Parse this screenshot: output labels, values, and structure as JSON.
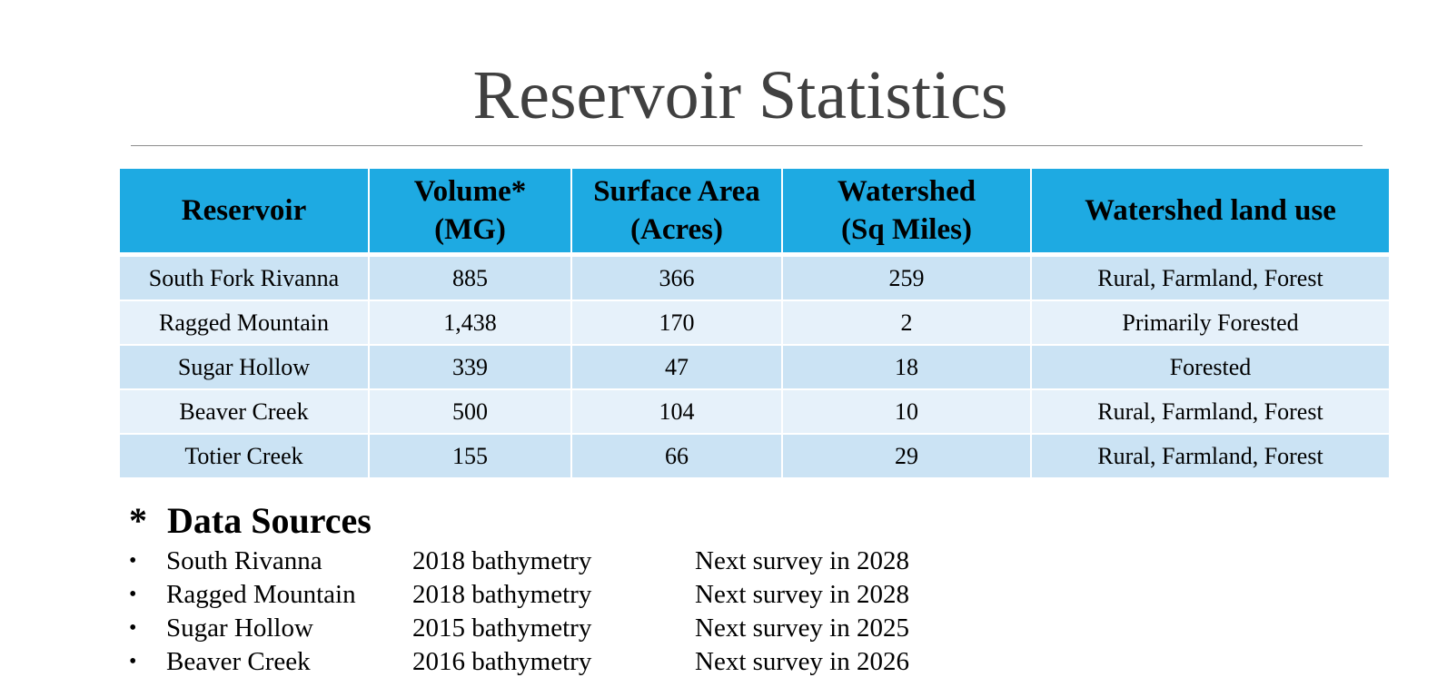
{
  "title": "Reservoir Statistics",
  "table": {
    "headers": [
      [
        "Reservoir"
      ],
      [
        "Volume*",
        "(MG)"
      ],
      [
        "Surface Area",
        "(Acres)"
      ],
      [
        "Watershed",
        "(Sq Miles)"
      ],
      [
        "Watershed land use"
      ]
    ],
    "rows": [
      [
        "South Fork Rivanna",
        "885",
        "366",
        "259",
        "Rural, Farmland, Forest"
      ],
      [
        "Ragged Mountain",
        "1,438",
        "170",
        "2",
        "Primarily Forested"
      ],
      [
        "Sugar Hollow",
        "339",
        "47",
        "18",
        "Forested"
      ],
      [
        "Beaver Creek",
        "500",
        "104",
        "10",
        "Rural, Farmland, Forest"
      ],
      [
        "Totier Creek",
        "155",
        "66",
        "29",
        "Rural, Farmland, Forest"
      ]
    ]
  },
  "sources": {
    "marker": "*",
    "heading": "Data Sources",
    "bullet": "•",
    "items": [
      [
        "South Rivanna",
        "2018 bathymetry",
        "Next survey in 2028"
      ],
      [
        "Ragged Mountain",
        "2018 bathymetry",
        "Next survey in 2028"
      ],
      [
        "Sugar Hollow",
        "2015 bathymetry",
        "Next survey in 2025"
      ],
      [
        "Beaver Creek",
        "2016 bathymetry",
        "Next survey in 2026"
      ]
    ]
  },
  "colors": {
    "header_bg": "#1eaae2",
    "row_dark": "#cbe3f4",
    "row_light": "#e6f1fa",
    "title": "#404040"
  }
}
